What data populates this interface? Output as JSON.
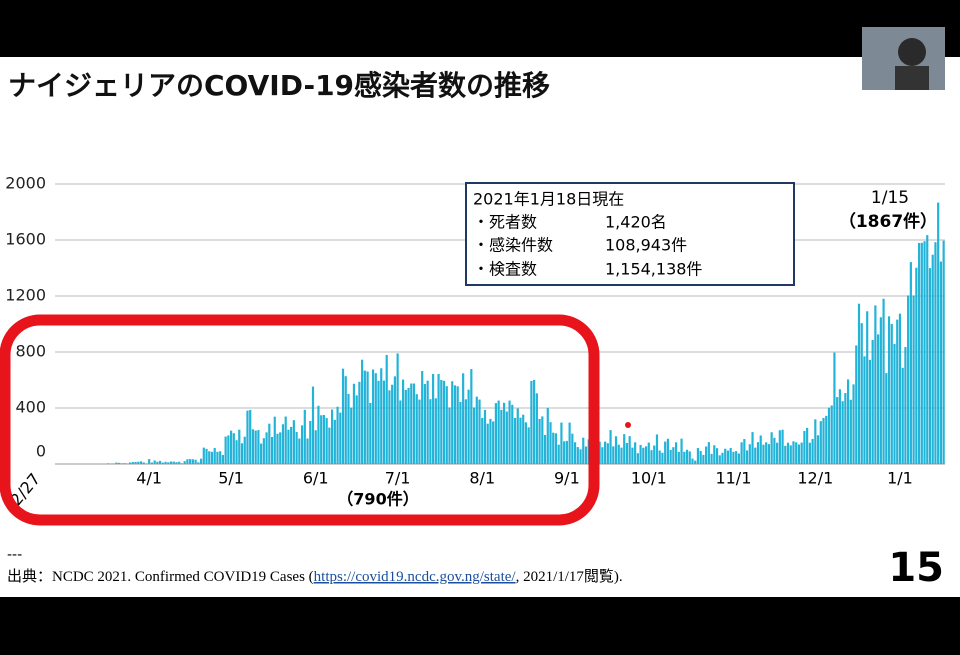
{
  "slide": {
    "title": "ナイジェリアのCOVID-19感染者数の推移",
    "separator": "---",
    "source_prefix": "出典：NCDC 2021. Confirmed COVID19 Cases (",
    "source_link": "https://covid19.ncdc.gov.ng/state/",
    "source_suffix": ", 2021/1/17閲覧).",
    "page_number": "15"
  },
  "info_box": {
    "heading": "2021年1月18日現在",
    "rows": [
      [
        "・死者数",
        "1,420名"
      ],
      [
        "・感染件数",
        "108,943件"
      ],
      [
        "・検査数",
        "1,154,138件"
      ]
    ]
  },
  "chart_data": {
    "type": "bar",
    "color": "#22b3d8",
    "ylim": [
      0,
      2000
    ],
    "yticks": [
      0,
      400,
      800,
      1200,
      1600,
      2000
    ],
    "grid": true,
    "annotations": [
      "1/15",
      "（1867件）",
      "（790件）"
    ],
    "categories": [
      "2/27",
      null,
      null,
      null,
      null,
      null,
      null,
      null,
      null,
      null,
      null,
      null,
      null,
      null,
      null,
      null,
      null,
      null,
      null,
      null,
      null,
      null,
      null,
      null,
      null,
      null,
      null,
      null,
      null,
      null,
      null,
      null,
      null,
      null,
      "4/1",
      null,
      null,
      null,
      null,
      null,
      null,
      null,
      null,
      null,
      null,
      null,
      null,
      null,
      null,
      null,
      null,
      null,
      null,
      null,
      null,
      null,
      null,
      null,
      null,
      null,
      null,
      null,
      null,
      null,
      "5/1",
      null,
      null,
      null,
      null,
      null,
      null,
      null,
      null,
      null,
      null,
      null,
      null,
      null,
      null,
      null,
      null,
      null,
      null,
      null,
      null,
      null,
      null,
      null,
      null,
      null,
      null,
      null,
      null,
      null,
      null,
      "6/1",
      null,
      null,
      null,
      null,
      null,
      null,
      null,
      null,
      null,
      null,
      null,
      null,
      null,
      null,
      null,
      null,
      null,
      null,
      null,
      null,
      null,
      null,
      null,
      null,
      null,
      null,
      null,
      null,
      null,
      "7/1",
      null,
      null,
      null,
      null,
      null,
      null,
      null,
      null,
      null,
      null,
      null,
      null,
      null,
      null,
      null,
      null,
      null,
      null,
      null,
      null,
      null,
      null,
      null,
      null,
      null,
      null,
      null,
      null,
      null,
      null,
      "8/1",
      null,
      null,
      null,
      null,
      null,
      null,
      null,
      null,
      null,
      null,
      null,
      null,
      null,
      null,
      null,
      null,
      null,
      null,
      null,
      null,
      null,
      null,
      null,
      null,
      null,
      null,
      null,
      null,
      null,
      null,
      "9/1",
      null,
      null,
      null,
      null,
      null,
      null,
      null,
      null,
      null,
      null,
      null,
      null,
      null,
      null,
      null,
      null,
      null,
      null,
      null,
      null,
      null,
      null,
      null,
      null,
      null,
      null,
      null,
      null,
      null,
      "10/1",
      null,
      null,
      null,
      null,
      null,
      null,
      null,
      null,
      null,
      null,
      null,
      null,
      null,
      null,
      null,
      null,
      null,
      null,
      null,
      null,
      null,
      null,
      null,
      null,
      null,
      null,
      null,
      null,
      null,
      null,
      "11/1",
      null,
      null,
      null,
      null,
      null,
      null,
      null,
      null,
      null,
      null,
      null,
      null,
      null,
      null,
      null,
      null,
      null,
      null,
      null,
      null,
      null,
      null,
      null,
      null,
      null,
      null,
      null,
      null,
      null,
      "12/1",
      null,
      null,
      null,
      null,
      null,
      null,
      null,
      null,
      null,
      null,
      null,
      null,
      null,
      null,
      null,
      null,
      null,
      null,
      null,
      null,
      null,
      null,
      null,
      null,
      null,
      null,
      null,
      null,
      null,
      null,
      "1/1",
      null,
      null,
      null,
      null,
      null,
      null,
      null,
      null,
      null,
      null,
      null,
      null,
      null,
      null,
      null,
      null
    ],
    "values": [
      1,
      0,
      0,
      0,
      0,
      0,
      0,
      0,
      0,
      0,
      1,
      0,
      0,
      0,
      0,
      0,
      0,
      0,
      1,
      5,
      3,
      4,
      10,
      8,
      5,
      6,
      4,
      11,
      14,
      15,
      16,
      19,
      11,
      4,
      35,
      10,
      25,
      16,
      22,
      10,
      16,
      12,
      18,
      17,
      13,
      16,
      5,
      20,
      34,
      35,
      34,
      30,
      12,
      38,
      117,
      108,
      91,
      87,
      114,
      87,
      91,
      64,
      196,
      204,
      238,
      220,
      170,
      245,
      148,
      195,
      381,
      386,
      248,
      239,
      242,
      146,
      184,
      226,
      288,
      193,
      338,
      216,
      226,
      284,
      339,
      245,
      265,
      313,
      229,
      182,
      276,
      387,
      182,
      307,
      553,
      241,
      416,
      348,
      350,
      328,
      260,
      389,
      315,
      409,
      367,
      681,
      627,
      501,
      403,
      573,
      490,
      587,
      745,
      667,
      661,
      436,
      675,
      649,
      594,
      684,
      596,
      779,
      526,
      566,
      626,
      790,
      454,
      603,
      529,
      544,
      575,
      575,
      499,
      460,
      664,
      571,
      595,
      463,
      643,
      469,
      643,
      600,
      594,
      556,
      404,
      591,
      562,
      555,
      443,
      648,
      462,
      531,
      678,
      404,
      481,
      460,
      329,
      386,
      288,
      322,
      304,
      435,
      453,
      387,
      437,
      375,
      453,
      423,
      329,
      397,
      331,
      352,
      298,
      262,
      593,
      601,
      505,
      322,
      340,
      207,
      401,
      299,
      224,
      219,
      138,
      296,
      162,
      165,
      296,
      217,
      155,
      121,
      105,
      188,
      125,
      176,
      131,
      94,
      188,
      160,
      120,
      160,
      148,
      242,
      126,
      198,
      138,
      117,
      213,
      150,
      199,
      117,
      155,
      77,
      136,
      116,
      126,
      153,
      99,
      132,
      211,
      96,
      80,
      160,
      180,
      100,
      120,
      155,
      87,
      181,
      87,
      102,
      90,
      39,
      24,
      114,
      93,
      65,
      125,
      156,
      72,
      134,
      113,
      62,
      80,
      109,
      96,
      114,
      87,
      92,
      75,
      155,
      178,
      97,
      141,
      228,
      117,
      156,
      204,
      138,
      155,
      142,
      227,
      187,
      152,
      241,
      245,
      130,
      152,
      133,
      162,
      155,
      139,
      153,
      236,
      258,
      152,
      179,
      319,
      205,
      306,
      329,
      344,
      402,
      418,
      796,
      478,
      534,
      449,
      507,
      604,
      459,
      569,
      847,
      1145,
      1006,
      769,
      1091,
      744,
      886,
      1133,
      926,
      1048,
      1180,
      649,
      1055,
      1001,
      857,
      1031,
      1074,
      687,
      835,
      1204,
      1442,
      1204,
      1402,
      1579,
      1580,
      1591,
      1635,
      1399,
      1495,
      1584,
      1867,
      1446,
      1595
    ]
  }
}
